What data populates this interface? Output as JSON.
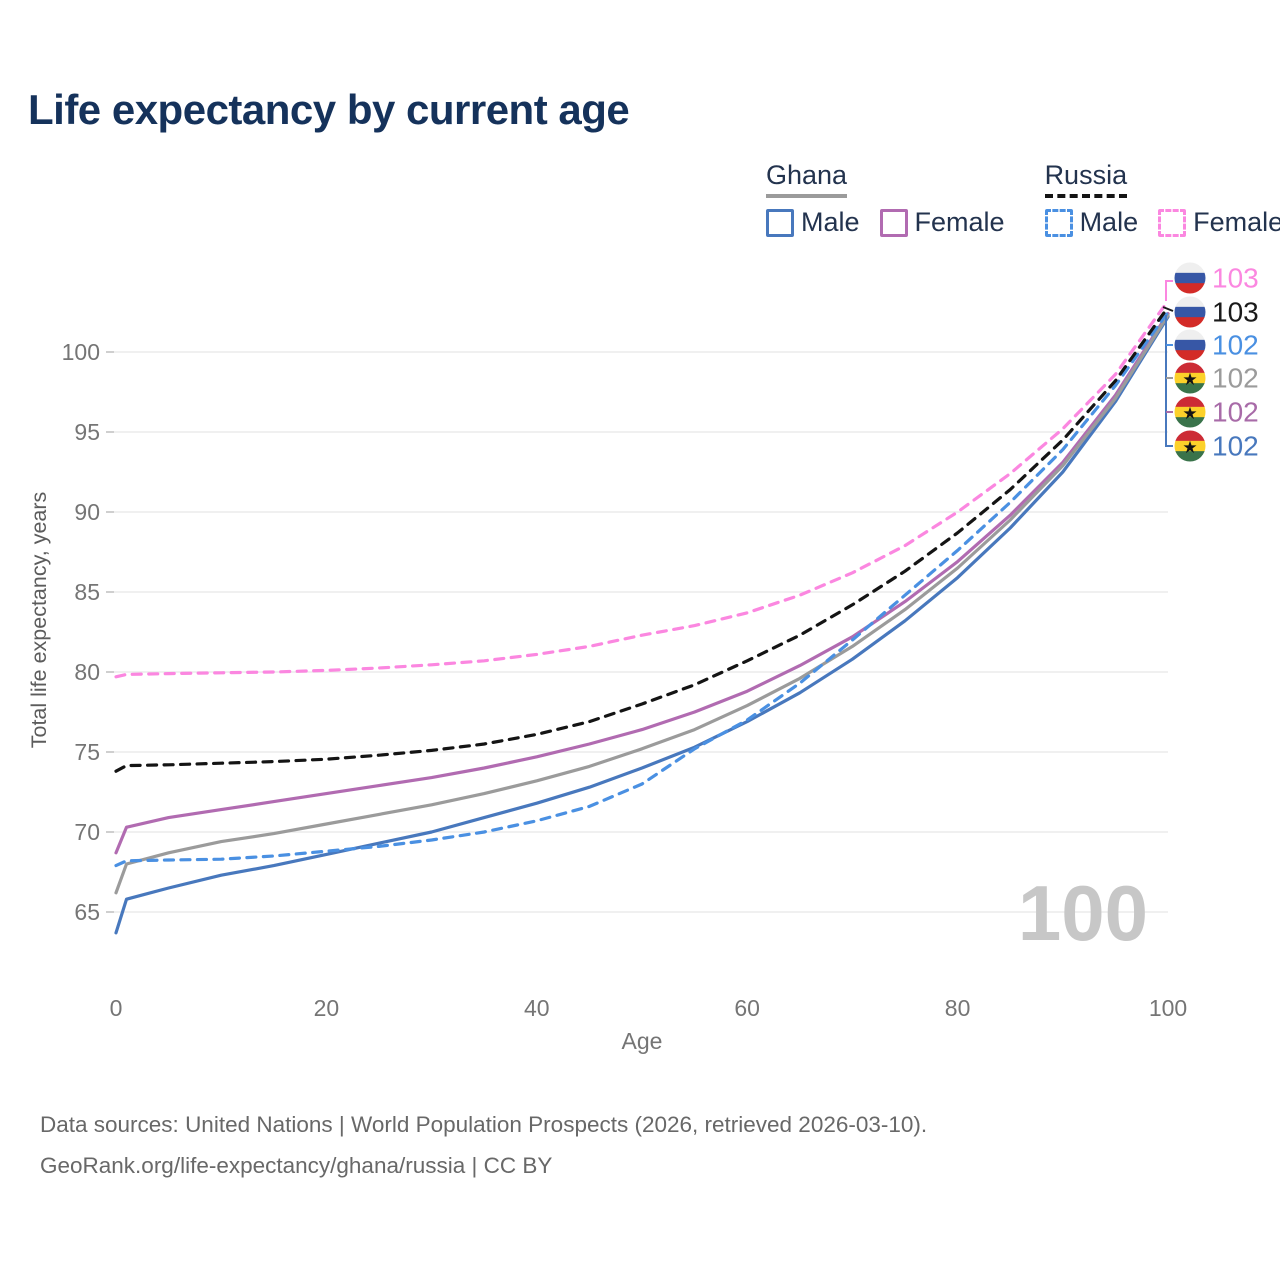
{
  "title": "Life expectancy by current age",
  "legend": {
    "groups": [
      {
        "id": "ghana",
        "label": "Ghana",
        "items": [
          {
            "id": "ghana-male",
            "label": "Male"
          },
          {
            "id": "ghana-female",
            "label": "Female"
          }
        ]
      },
      {
        "id": "russia",
        "label": "Russia",
        "items": [
          {
            "id": "russia-male",
            "label": "Male"
          },
          {
            "id": "russia-female",
            "label": "Female"
          }
        ]
      }
    ]
  },
  "watermark_age": "100",
  "footer": {
    "line1": "Data sources: United Nations | World Population Prospects (2026, retrieved 2026-03-10).",
    "line2": "GeoRank.org/life-expectancy/ghana/russia | CC BY"
  },
  "colors": {
    "title": "#15325b",
    "axis_text": "#757575",
    "grid": "#ebebeb",
    "watermark": "#c7c7c7"
  },
  "flag_colors": {
    "russia": [
      "#efefef",
      "#3757a6",
      "#d32b27"
    ],
    "ghana": [
      "#cc2b35",
      "#fcd12a",
      "#39734a"
    ]
  },
  "end_labels": [
    {
      "flag": "russia",
      "series": "Russia Female",
      "value": "103",
      "color": "#fb87e0"
    },
    {
      "flag": "russia",
      "series": "Russia",
      "value": "103",
      "color": "#1a1a1a"
    },
    {
      "flag": "russia",
      "series": "Russia Male",
      "value": "102",
      "color": "#4a90e2"
    },
    {
      "flag": "ghana",
      "series": "Ghana",
      "value": "102",
      "color": "#9b9b9b"
    },
    {
      "flag": "ghana",
      "series": "Ghana Female",
      "value": "102",
      "color": "#a86ba8"
    },
    {
      "flag": "ghana",
      "series": "Ghana Male",
      "value": "102",
      "color": "#4878bd"
    }
  ],
  "chart_data": {
    "type": "line",
    "title": "Life expectancy by current age",
    "xlabel": "Age",
    "ylabel": "Total life expectancy, years",
    "xlim": [
      0,
      100
    ],
    "ylim": [
      63,
      104
    ],
    "x_ticks": [
      0,
      20,
      40,
      60,
      80,
      100
    ],
    "y_ticks": [
      65,
      70,
      75,
      80,
      85,
      90,
      95,
      100
    ],
    "grid": "horizontal",
    "legend_position": "top-right",
    "x": [
      0,
      1,
      5,
      10,
      15,
      20,
      25,
      30,
      35,
      40,
      45,
      50,
      55,
      60,
      65,
      70,
      75,
      80,
      85,
      90,
      95,
      100
    ],
    "series": [
      {
        "id": "ghana-male",
        "name": "Ghana Male",
        "dash": false,
        "color": "#4878bd",
        "values": [
          63.7,
          65.8,
          66.5,
          67.3,
          67.9,
          68.6,
          69.3,
          70.0,
          70.9,
          71.8,
          72.8,
          74.0,
          75.3,
          76.9,
          78.7,
          80.8,
          83.2,
          85.9,
          89.0,
          92.5,
          96.9,
          102.2
        ]
      },
      {
        "id": "ghana-female",
        "name": "Ghana Female",
        "dash": false,
        "color": "#b16bb1",
        "values": [
          68.7,
          70.3,
          70.9,
          71.4,
          71.9,
          72.4,
          72.9,
          73.4,
          74.0,
          74.7,
          75.5,
          76.4,
          77.5,
          78.8,
          80.4,
          82.2,
          84.4,
          86.9,
          89.8,
          93.1,
          97.3,
          102.4
        ]
      },
      {
        "id": "ghana-both",
        "name": "Ghana",
        "dash": false,
        "color": "#9b9b9b",
        "values": [
          66.2,
          68.0,
          68.7,
          69.4,
          69.9,
          70.5,
          71.1,
          71.7,
          72.4,
          73.2,
          74.1,
          75.2,
          76.4,
          77.9,
          79.6,
          81.6,
          83.9,
          86.5,
          89.5,
          92.9,
          97.1,
          102.3
        ]
      },
      {
        "id": "russia-male",
        "name": "Russia Male",
        "dash": true,
        "color": "#4a90e2",
        "values": [
          67.9,
          68.2,
          68.25,
          68.3,
          68.5,
          68.8,
          69.1,
          69.5,
          70.0,
          70.7,
          71.6,
          73.0,
          75.2,
          77.0,
          79.3,
          82.0,
          84.8,
          87.6,
          90.6,
          93.9,
          97.9,
          102.5
        ]
      },
      {
        "id": "russia-female",
        "name": "Russia Female",
        "dash": true,
        "color": "#fb87e0",
        "values": [
          79.7,
          79.85,
          79.9,
          79.95,
          80.0,
          80.1,
          80.25,
          80.45,
          80.7,
          81.1,
          81.6,
          82.3,
          82.9,
          83.7,
          84.8,
          86.2,
          87.9,
          90.0,
          92.4,
          95.2,
          98.6,
          103.2
        ]
      },
      {
        "id": "russia-both",
        "name": "Russia",
        "dash": true,
        "color": "#141414",
        "values": [
          73.8,
          74.15,
          74.2,
          74.3,
          74.4,
          74.55,
          74.8,
          75.1,
          75.5,
          76.1,
          76.9,
          78.0,
          79.2,
          80.7,
          82.3,
          84.2,
          86.3,
          88.7,
          91.4,
          94.5,
          98.2,
          102.8
        ]
      }
    ]
  }
}
